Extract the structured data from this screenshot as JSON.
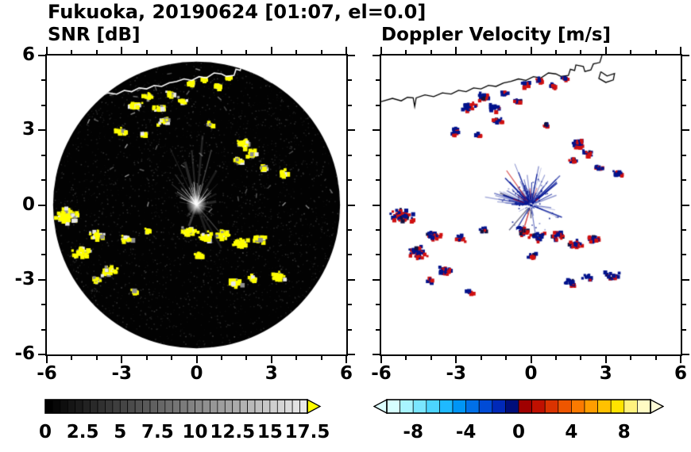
{
  "header": {
    "title": "Fukuoka, 20190624 [01:07, el=0.0]"
  },
  "panels": {
    "snr": {
      "subtitle": "SNR [dB]"
    },
    "doppler": {
      "subtitle": "Doppler Velocity [m/s]"
    }
  },
  "axes": {
    "xlim": [
      -6,
      6
    ],
    "ylim": [
      -6,
      6
    ],
    "minor_step": 1,
    "major_ticks": [
      -6,
      -3,
      0,
      3,
      6
    ],
    "tick_labels": [
      "-6",
      "-3",
      "0",
      "3",
      "6"
    ]
  },
  "colorbars": {
    "snr": {
      "min": 0,
      "max": 17.5,
      "cells": 35,
      "labels": [
        "0",
        "2.5",
        "5",
        "7.5",
        "10",
        "12.5",
        "15",
        "17.5"
      ],
      "label_values": [
        0,
        2.5,
        5,
        7.5,
        10,
        12.5,
        15,
        17.5
      ],
      "start_color": "#000000",
      "end_color": "#e9e9e9",
      "overflow_color": "#ffff00"
    },
    "doppler": {
      "min": -10,
      "max": 10,
      "labels": [
        "-8",
        "-4",
        "0",
        "4",
        "8"
      ],
      "label_values": [
        -8,
        -4,
        0,
        4,
        8
      ],
      "colors": [
        "#d6ffff",
        "#a8f4ff",
        "#7ae6ff",
        "#4cd4ff",
        "#1fb9ff",
        "#0095f5",
        "#0070e8",
        "#004bd6",
        "#0029b8",
        "#000e7a",
        "#9f0000",
        "#c01000",
        "#da3300",
        "#ee5600",
        "#fb7a00",
        "#ff9d00",
        "#ffc100",
        "#ffe300",
        "#fff27e",
        "#fffbc4"
      ],
      "under_color": "#ddffff",
      "over_color": "#fffcd8"
    }
  },
  "overlays": {
    "coastline": [
      [
        -6.0,
        4.15
      ],
      [
        -5.55,
        4.28
      ],
      [
        -5.2,
        4.18
      ],
      [
        -4.95,
        4.32
      ],
      [
        -4.72,
        4.3
      ],
      [
        -4.66,
        3.95
      ],
      [
        -4.6,
        4.3
      ],
      [
        -4.25,
        4.42
      ],
      [
        -3.9,
        4.35
      ],
      [
        -3.55,
        4.5
      ],
      [
        -3.2,
        4.45
      ],
      [
        -2.9,
        4.6
      ],
      [
        -2.6,
        4.55
      ],
      [
        -2.3,
        4.7
      ],
      [
        -2.0,
        4.66
      ],
      [
        -1.7,
        4.8
      ],
      [
        -1.4,
        4.76
      ],
      [
        -1.1,
        4.9
      ],
      [
        -0.8,
        4.96
      ],
      [
        -0.5,
        5.06
      ],
      [
        -0.2,
        5.0
      ],
      [
        0.1,
        5.15
      ],
      [
        0.4,
        5.1
      ],
      [
        0.7,
        5.3
      ],
      [
        1.0,
        5.26
      ],
      [
        1.2,
        5.16
      ],
      [
        1.5,
        5.2
      ],
      [
        1.58,
        5.45
      ],
      [
        1.75,
        5.4
      ],
      [
        1.8,
        5.62
      ],
      [
        2.1,
        5.56
      ],
      [
        2.16,
        5.36
      ],
      [
        2.4,
        5.42
      ],
      [
        2.5,
        5.66
      ],
      [
        2.76,
        5.72
      ],
      [
        2.86,
        6.05
      ]
    ],
    "island": [
      [
        2.8,
        5.35
      ],
      [
        3.05,
        5.18
      ],
      [
        3.35,
        5.28
      ],
      [
        3.3,
        5.02
      ],
      [
        3.0,
        4.92
      ],
      [
        2.72,
        5.08
      ],
      [
        2.8,
        5.35
      ]
    ]
  },
  "chart_data": [
    {
      "type": "heatmap",
      "title": "SNR [dB]",
      "xlim": [
        -6,
        6
      ],
      "ylim": [
        -6,
        6
      ],
      "xticks": [
        -6,
        -3,
        0,
        3,
        6
      ],
      "yticks": [
        -6,
        -3,
        0,
        3,
        6
      ],
      "value_range": [
        0,
        17.5
      ],
      "colorbar_ticks": [
        0,
        2.5,
        5,
        7.5,
        10,
        12.5,
        15,
        17.5
      ],
      "colormap": "black-to-white grayscale; yellow above 17.5 dB",
      "scan_disk_radius": 5.75,
      "note": "radar PPI scan: black low-SNR noise disk centered at origin, bright yellow echo clusters, faint gray beam spokes radiating from center, white coastline along the top of the disk",
      "echo_clusters": [
        [
          -5.25,
          -0.35,
          0.5,
          60
        ],
        [
          -4.65,
          -1.85,
          0.4,
          40
        ],
        [
          -4.0,
          -1.15,
          0.3,
          26
        ],
        [
          -2.9,
          -1.3,
          0.25,
          18
        ],
        [
          -1.95,
          -0.95,
          0.18,
          10
        ],
        [
          -0.4,
          -1.0,
          0.3,
          26
        ],
        [
          0.3,
          -1.2,
          0.32,
          28
        ],
        [
          1.0,
          -1.15,
          0.3,
          24
        ],
        [
          1.7,
          -1.45,
          0.32,
          28
        ],
        [
          2.4,
          -1.3,
          0.28,
          20
        ],
        [
          0.05,
          -1.95,
          0.22,
          14
        ],
        [
          -3.5,
          -2.6,
          0.33,
          28
        ],
        [
          -4.1,
          -2.95,
          0.2,
          12
        ],
        [
          1.5,
          -3.05,
          0.28,
          22
        ],
        [
          2.2,
          -2.85,
          0.22,
          12
        ],
        [
          3.2,
          -2.8,
          0.28,
          20
        ],
        [
          -2.55,
          -3.4,
          0.15,
          8
        ],
        [
          -2.55,
          4.05,
          0.3,
          26
        ],
        [
          -2.0,
          4.4,
          0.25,
          20
        ],
        [
          -1.55,
          3.95,
          0.25,
          18
        ],
        [
          -1.1,
          4.55,
          0.2,
          14
        ],
        [
          -0.65,
          4.25,
          0.2,
          14
        ],
        [
          -1.4,
          3.45,
          0.25,
          16
        ],
        [
          -3.1,
          3.0,
          0.25,
          18
        ],
        [
          -2.2,
          2.9,
          0.15,
          8
        ],
        [
          -0.3,
          4.95,
          0.18,
          12
        ],
        [
          0.25,
          5.1,
          0.18,
          12
        ],
        [
          0.8,
          4.85,
          0.16,
          10
        ],
        [
          1.25,
          5.15,
          0.16,
          10
        ],
        [
          0.5,
          3.3,
          0.14,
          8
        ],
        [
          1.8,
          2.55,
          0.3,
          30
        ],
        [
          2.2,
          2.15,
          0.25,
          18
        ],
        [
          1.6,
          1.85,
          0.22,
          14
        ],
        [
          2.65,
          1.55,
          0.2,
          12
        ],
        [
          3.4,
          1.35,
          0.22,
          14
        ]
      ],
      "beam_spokes": [
        [
          75,
          2.3
        ],
        [
          85,
          2.8
        ],
        [
          95,
          2.2
        ],
        [
          105,
          1.8
        ],
        [
          115,
          2.5
        ],
        [
          125,
          1.5
        ],
        [
          60,
          1.6
        ],
        [
          45,
          1.2
        ],
        [
          140,
          1.3
        ],
        [
          30,
          0.9
        ],
        [
          150,
          1.0
        ],
        [
          -60,
          2.0
        ],
        [
          -50,
          1.4
        ],
        [
          -70,
          1.2
        ],
        [
          -30,
          0.8
        ],
        [
          10,
          0.8
        ],
        [
          170,
          0.7
        ],
        [
          -110,
          0.9
        ],
        [
          -10,
          0.6
        ],
        [
          -130,
          0.6
        ]
      ]
    },
    {
      "type": "heatmap",
      "title": "Doppler Velocity [m/s]",
      "xlim": [
        -6,
        6
      ],
      "ylim": [
        -6,
        6
      ],
      "xticks": [
        -6,
        -3,
        0,
        3,
        6
      ],
      "yticks": [
        -6,
        -3,
        0,
        3,
        6
      ],
      "value_range": [
        -10,
        10
      ],
      "colorbar_ticks": [
        -8,
        -4,
        0,
        4,
        8
      ],
      "colormap": "cyan/blue/navy negative velocities, red/orange/yellow positive velocities",
      "note": "same echo clusters as the SNR panel rendered as mixed dark-blue and red pixels on white; dense blue starburst of radial streaks around the origin; black coastline along the top",
      "echo_clusters": [
        [
          -5.25,
          -0.35,
          0.5,
          60
        ],
        [
          -4.65,
          -1.85,
          0.4,
          40
        ],
        [
          -4.0,
          -1.15,
          0.3,
          26
        ],
        [
          -2.9,
          -1.3,
          0.25,
          18
        ],
        [
          -1.95,
          -0.95,
          0.18,
          10
        ],
        [
          -0.4,
          -1.0,
          0.3,
          26
        ],
        [
          0.3,
          -1.2,
          0.32,
          28
        ],
        [
          1.0,
          -1.15,
          0.3,
          24
        ],
        [
          1.7,
          -1.45,
          0.32,
          28
        ],
        [
          2.4,
          -1.3,
          0.28,
          20
        ],
        [
          0.05,
          -1.95,
          0.22,
          14
        ],
        [
          -3.5,
          -2.6,
          0.33,
          28
        ],
        [
          -4.1,
          -2.95,
          0.2,
          12
        ],
        [
          1.5,
          -3.05,
          0.28,
          22
        ],
        [
          2.2,
          -2.85,
          0.22,
          12
        ],
        [
          3.2,
          -2.8,
          0.28,
          20
        ],
        [
          -2.55,
          -3.4,
          0.15,
          8
        ],
        [
          -2.55,
          4.05,
          0.3,
          26
        ],
        [
          -2.0,
          4.4,
          0.25,
          20
        ],
        [
          -1.55,
          3.95,
          0.25,
          18
        ],
        [
          -1.1,
          4.55,
          0.2,
          14
        ],
        [
          -0.65,
          4.25,
          0.2,
          14
        ],
        [
          -1.4,
          3.45,
          0.25,
          16
        ],
        [
          -3.1,
          3.0,
          0.25,
          18
        ],
        [
          -2.2,
          2.9,
          0.15,
          8
        ],
        [
          -0.3,
          4.95,
          0.18,
          12
        ],
        [
          0.25,
          5.1,
          0.18,
          12
        ],
        [
          0.8,
          4.85,
          0.16,
          10
        ],
        [
          1.25,
          5.15,
          0.16,
          10
        ],
        [
          0.5,
          3.3,
          0.14,
          8
        ],
        [
          1.8,
          2.55,
          0.3,
          30
        ],
        [
          2.2,
          2.15,
          0.25,
          18
        ],
        [
          1.6,
          1.85,
          0.22,
          14
        ],
        [
          2.65,
          1.55,
          0.2,
          12
        ],
        [
          3.4,
          1.35,
          0.22,
          14
        ]
      ],
      "center_starburst": {
        "count": 130,
        "max_radius": 1.5
      }
    }
  ]
}
